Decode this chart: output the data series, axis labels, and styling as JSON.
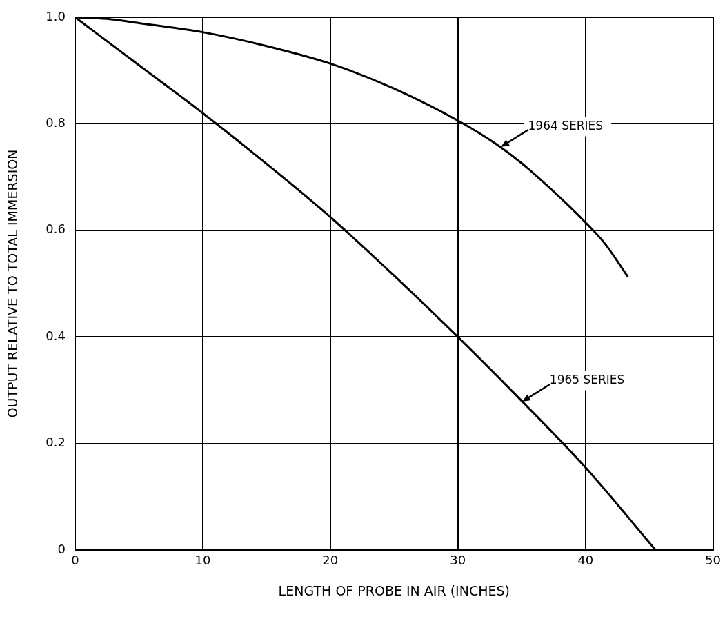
{
  "chart_data": {
    "type": "line",
    "xlabel": "LENGTH OF PROBE IN AIR (INCHES)",
    "ylabel": "OUTPUT RELATIVE TO TOTAL IMMERSION",
    "series": [
      {
        "name": "1964 SERIES",
        "color": "#000000",
        "x": [
          0,
          2.5,
          5,
          10,
          15,
          20,
          25,
          30,
          33,
          35,
          37.5,
          40,
          41.5,
          43.3
        ],
        "values": [
          1.0,
          0.997,
          0.989,
          0.972,
          0.946,
          0.913,
          0.866,
          0.806,
          0.762,
          0.726,
          0.673,
          0.615,
          0.576,
          0.514
        ]
      },
      {
        "name": "1965 SERIES",
        "color": "#000000",
        "x": [
          0,
          5,
          10,
          15,
          20,
          25,
          30,
          35,
          40,
          45.5
        ],
        "values": [
          1.0,
          0.91,
          0.82,
          0.725,
          0.625,
          0.515,
          0.4,
          0.28,
          0.155,
          0
        ]
      }
    ],
    "xlim": [
      0,
      50
    ],
    "ylim": [
      0,
      1
    ],
    "xticks": [
      0,
      10,
      20,
      30,
      40,
      50
    ],
    "yticks": [
      0,
      0.2,
      0.4,
      0.6,
      0.8,
      {
        "value": 1,
        "label": "1.0"
      }
    ],
    "grid": true,
    "marker": "none",
    "line_style": "solid"
  }
}
